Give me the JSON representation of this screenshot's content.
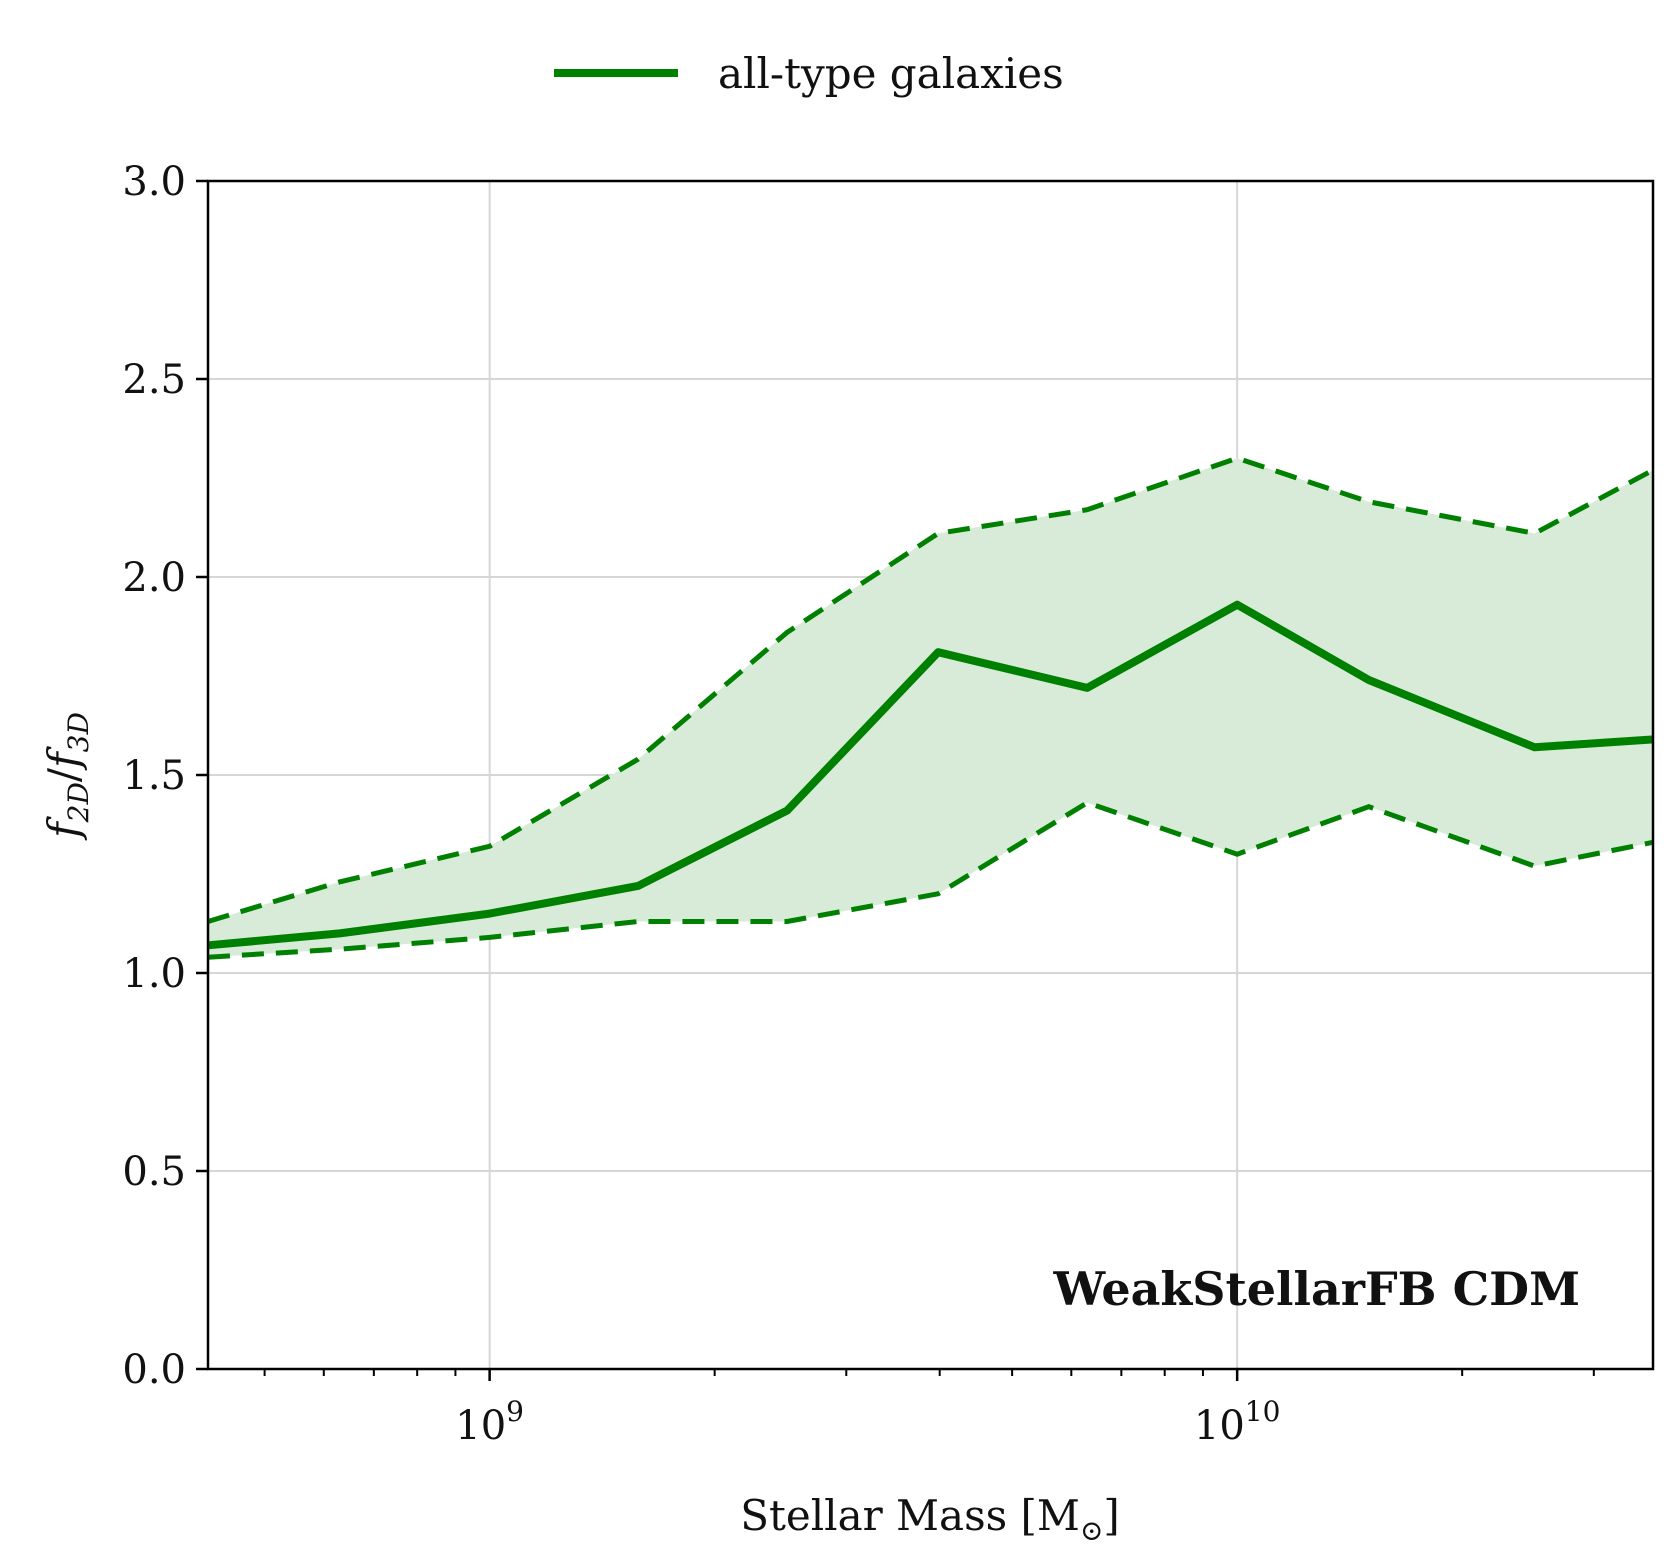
{
  "chart_data": {
    "type": "line",
    "xscale": "log",
    "xlim": [
      420000000,
      36000000000
    ],
    "ylim": [
      0,
      3
    ],
    "xticks": [
      {
        "value": 1000000000,
        "label_base": "10",
        "label_exp": "9"
      },
      {
        "value": 10000000000,
        "label_base": "10",
        "label_exp": "10"
      }
    ],
    "yticks": [
      {
        "value": 0.0,
        "label": "0.0"
      },
      {
        "value": 0.5,
        "label": "0.5"
      },
      {
        "value": 1.0,
        "label": "1.0"
      },
      {
        "value": 1.5,
        "label": "1.5"
      },
      {
        "value": 2.0,
        "label": "2.0"
      },
      {
        "value": 2.5,
        "label": "2.5"
      },
      {
        "value": 3.0,
        "label": "3.0"
      }
    ],
    "xlabel": "Stellar Mass [M",
    "xlabel_sub": "⊙",
    "xlabel_end": "]",
    "ylabel_f": "f",
    "ylabel_sub1": "2D",
    "ylabel_sep": "/",
    "ylabel_sub2": "3D",
    "annotation": "WeakStellarFB CDM",
    "grid": true,
    "legend_position": "top-center",
    "color": "#008000",
    "band_color": "#d8ebd8",
    "series": [
      {
        "name": "all-type galaxies",
        "x": [
          420000000,
          630000000,
          1000000000,
          1580000000,
          2500000000,
          3980000000,
          6300000000,
          10000000000,
          15000000000,
          25000000000,
          36000000000
        ],
        "median": [
          1.07,
          1.1,
          1.15,
          1.22,
          1.41,
          1.81,
          1.72,
          1.93,
          1.74,
          1.57,
          1.59
        ],
        "upper": [
          1.13,
          1.23,
          1.32,
          1.54,
          1.86,
          2.11,
          2.17,
          2.3,
          2.19,
          2.11,
          2.27
        ],
        "lower": [
          1.04,
          1.06,
          1.09,
          1.13,
          1.13,
          1.2,
          1.43,
          1.3,
          1.42,
          1.27,
          1.33
        ]
      }
    ]
  }
}
